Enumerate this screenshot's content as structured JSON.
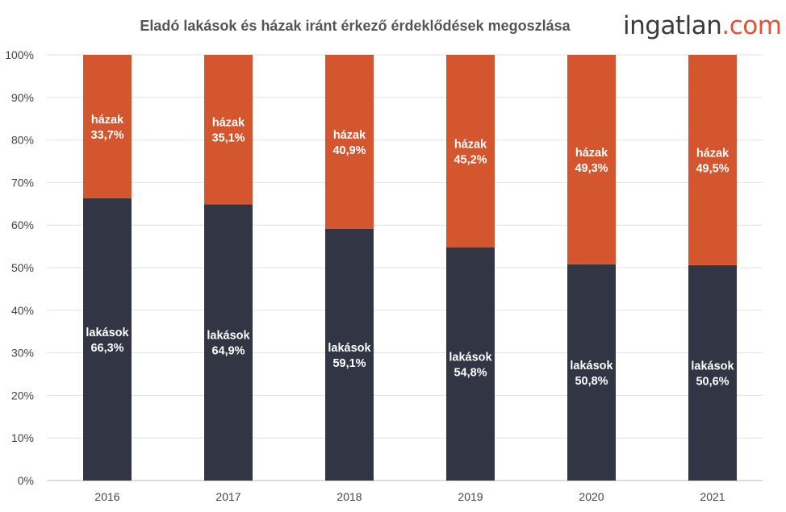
{
  "chart_data": {
    "type": "bar",
    "stacked": true,
    "title": "Eladó lakások és házak iránt érkező érdeklődések megoszlása",
    "categories": [
      "2016",
      "2017",
      "2018",
      "2019",
      "2020",
      "2021"
    ],
    "series": [
      {
        "name": "lakások",
        "color": "#323644",
        "values": [
          66.3,
          64.9,
          59.1,
          54.8,
          50.8,
          50.6
        ]
      },
      {
        "name": "házak",
        "color": "#d4562f",
        "values": [
          33.7,
          35.1,
          40.9,
          45.2,
          49.3,
          49.5
        ]
      }
    ],
    "ylim": [
      0,
      100
    ],
    "yticks": [
      "0%",
      "10%",
      "20%",
      "30%",
      "40%",
      "50%",
      "60%",
      "70%",
      "80%",
      "90%",
      "100%"
    ],
    "grid": true,
    "legend": "none",
    "xlabel": "",
    "ylabel": ""
  },
  "logo": {
    "name": "ingatlan",
    "domain": ".com"
  }
}
